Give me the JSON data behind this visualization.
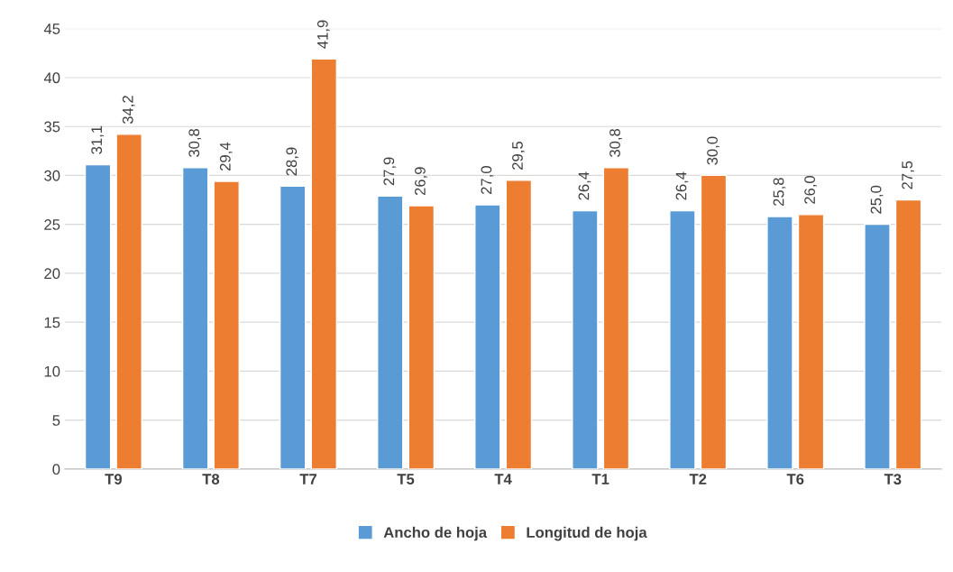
{
  "chart_data": {
    "type": "bar",
    "categories": [
      "T9",
      "T8",
      "T7",
      "T5",
      "T4",
      "T1",
      "T2",
      "T6",
      "T3"
    ],
    "series": [
      {
        "name": "Ancho de hoja",
        "color": "#5b9bd5",
        "values": [
          31.1,
          30.8,
          28.9,
          27.9,
          27.0,
          26.4,
          26.4,
          25.8,
          25.0
        ],
        "value_labels": [
          "31,1",
          "30,8",
          "28,9",
          "27,9",
          "27,0",
          "26,4",
          "26,4",
          "25,8",
          "25,0"
        ]
      },
      {
        "name": "Longitud de hoja",
        "color": "#ed7d31",
        "values": [
          34.2,
          29.4,
          41.9,
          26.9,
          29.5,
          30.8,
          30.0,
          26.0,
          27.5
        ],
        "value_labels": [
          "34,2",
          "29,4",
          "41,9",
          "26,9",
          "29,5",
          "30,8",
          "30,0",
          "26,0",
          "27,5"
        ]
      }
    ],
    "ylim": [
      0,
      45
    ],
    "yticks": [
      0,
      5,
      10,
      15,
      20,
      25,
      30,
      35,
      40,
      45
    ],
    "grid": "y",
    "legend": "bottom"
  }
}
